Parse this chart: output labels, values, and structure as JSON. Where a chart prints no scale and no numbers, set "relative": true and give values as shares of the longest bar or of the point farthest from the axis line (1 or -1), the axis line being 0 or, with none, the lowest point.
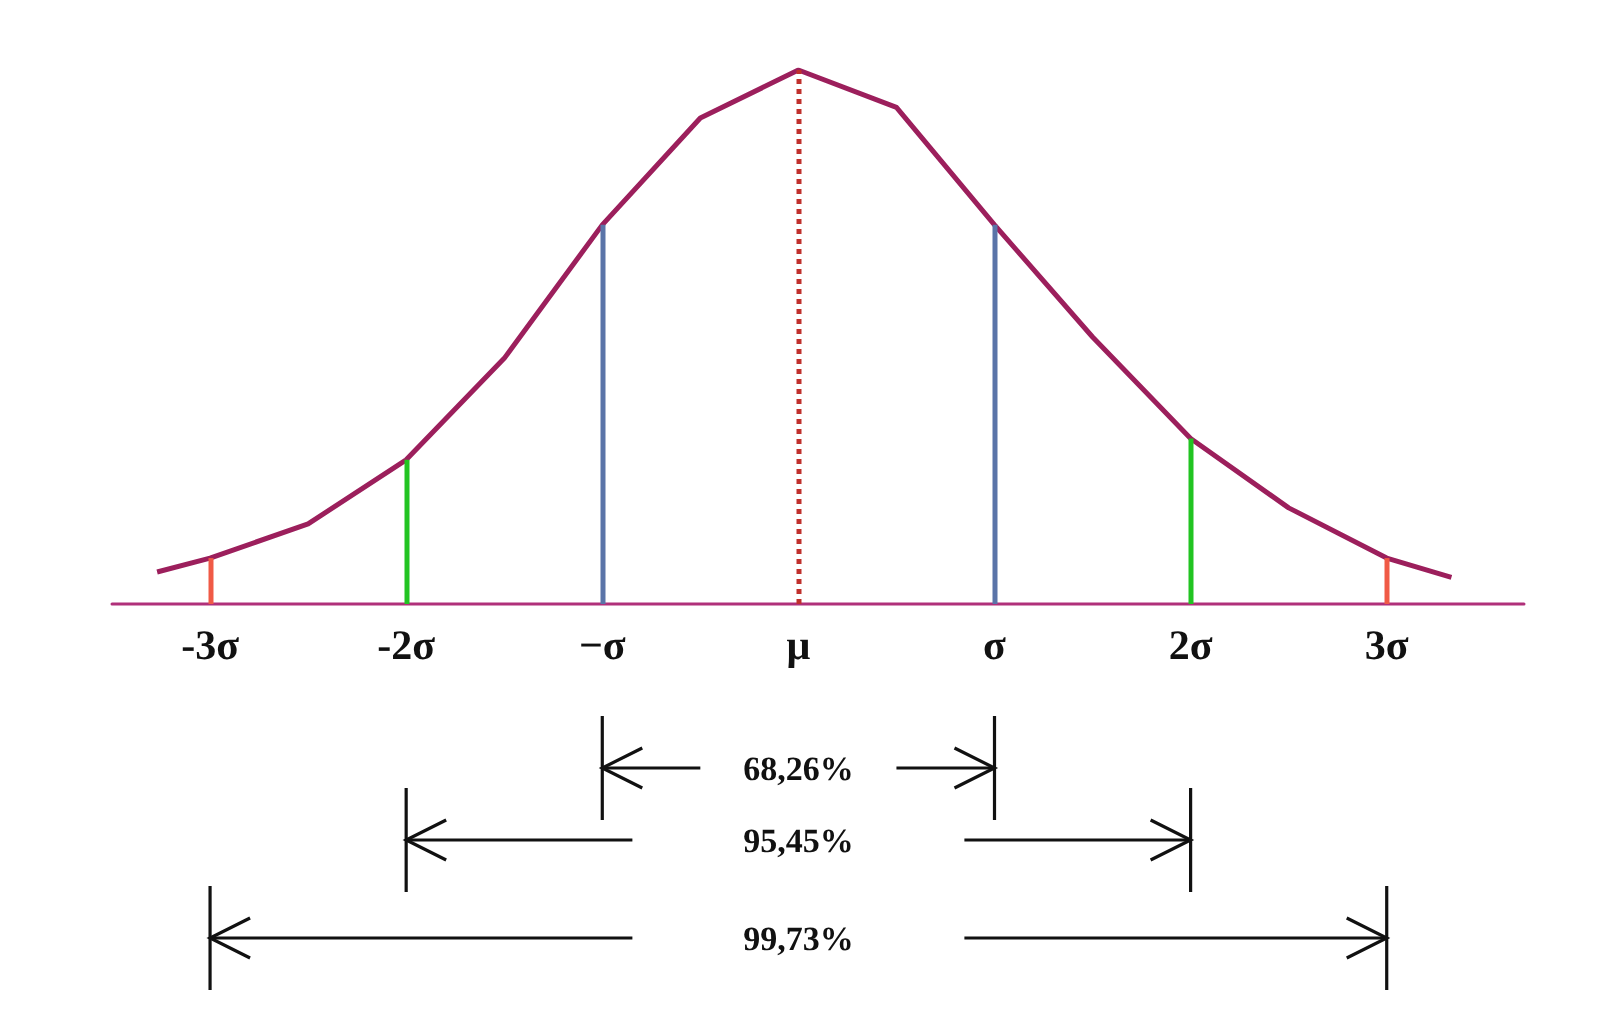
{
  "chart_data": {
    "type": "line",
    "relative": true,
    "marker": "none",
    "x": [
      -3.27,
      -3,
      -2.5,
      -2,
      -1.5,
      -1,
      -0.5,
      0,
      0.5,
      1,
      1.5,
      2,
      2.5,
      3,
      3.33
    ],
    "series": [
      {
        "color": "#9c1f5c",
        "values": [
          0.06,
          0.086,
          0.15,
          0.27,
          0.46,
          0.71,
          0.91,
          1,
          0.93,
          0.71,
          0.5,
          0.31,
          0.18,
          0.086,
          0.05
        ]
      }
    ],
    "xlim": [
      -3.5,
      3.7
    ],
    "xticks": [
      {
        "value": -3,
        "label": "-3σ"
      },
      {
        "value": -2,
        "label": "-2σ"
      },
      {
        "value": -1,
        "label": "−σ"
      },
      {
        "value": 0,
        "label": "μ"
      },
      {
        "value": 1,
        "label": "σ"
      },
      {
        "value": 2,
        "label": "2σ"
      },
      {
        "value": 3,
        "label": "3σ"
      }
    ],
    "ref_lines": [
      {
        "axis": "x",
        "value": -3,
        "color": "#f05a46"
      },
      {
        "axis": "x",
        "value": -2,
        "color": "#22c422"
      },
      {
        "axis": "x",
        "value": -1,
        "color": "#5a74a8"
      },
      {
        "axis": "x",
        "value": 0,
        "color": "#c0302c",
        "line_style": "dotted"
      },
      {
        "axis": "x",
        "value": 1,
        "color": "#5a74a8"
      },
      {
        "axis": "x",
        "value": 2,
        "color": "#22c422"
      },
      {
        "axis": "x",
        "value": 3,
        "color": "#f05a46"
      }
    ],
    "annotations": [
      "68,26%",
      "95,45%",
      "99,73%"
    ]
  }
}
